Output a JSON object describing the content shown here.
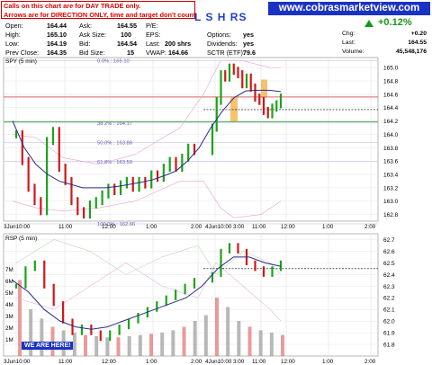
{
  "notice": {
    "line1": "Calls on this chart are for DAY TRADE only.",
    "line2": "Arrows are for DIRECTION ONLY, time and target don't count."
  },
  "quote": {
    "open_label": "Open:",
    "open": "164.44",
    "ask_label": "Ask:",
    "ask": "164.55",
    "pe_label": "P/E:",
    "pe": "",
    "high_label": "High:",
    "high": "165.10",
    "asksize_label": "Ask Size:",
    "asksize": "100",
    "eps_label": "EPS:",
    "eps": "",
    "options_label": "Options:",
    "options": "yes",
    "low_label": "Low:",
    "low": "164.19",
    "bid_label": "Bid:",
    "bid": "164.54",
    "last_label": "Last:",
    "last_size": "200 shrs",
    "dividends_label": "Dividends:",
    "dividends": "yes",
    "prevclose_label": "Prev Close:",
    "prevclose": "164.35",
    "bidsize_label": "Bid Size:",
    "bidsize": "15",
    "vwap_label": "VWAP:",
    "vwap": "164.66",
    "sctr_label": "SCTR (ETF):",
    "sctr": "79.6",
    "chg_label": "Chg:",
    "chg": "+0.20",
    "last2_label": "Last:",
    "last2": "164.55",
    "volume_label": "Volume:",
    "volume": "45,548,176",
    "pct_change": "+0.12%"
  },
  "ticker": "L S H RS",
  "site": "www.cobrasmarketview.com",
  "chart_data": [
    {
      "type": "line",
      "panel_label": "SPY (5 min)",
      "ylim": [
        162.7,
        165.15
      ],
      "yticks": [
        "165.0",
        "164.8",
        "164.6",
        "164.4",
        "164.2",
        "164.0",
        "163.8",
        "163.6",
        "163.4",
        "163.2",
        "163.0",
        "162.8"
      ],
      "xticks": [
        "3Jun10:00",
        "11:00",
        "12:00",
        "1:00",
        "2:00",
        "3:00",
        "4Jun10:00",
        "11:00",
        "12:00",
        "1:00",
        "2:00",
        "3:00"
      ],
      "fib_levels": [
        {
          "label": "0.0% : 165.10",
          "value": 165.1
        },
        {
          "label": "38.2% : 164.17",
          "value": 164.17
        },
        {
          "label": "50.0% : 163.88",
          "value": 163.88
        },
        {
          "label": "61.8% : 163.59",
          "value": 163.59
        },
        {
          "label": "100.0% : 162.66",
          "value": 162.66
        }
      ],
      "hlines": {
        "red": 164.56,
        "green": 164.19,
        "dashed": 164.37
      },
      "price_points": [
        164.0,
        163.6,
        163.2,
        163.0,
        162.85,
        163.9,
        164.05,
        163.5,
        163.3,
        163.0,
        162.85,
        162.8,
        162.95,
        163.0,
        163.1,
        163.2,
        163.15,
        163.25,
        163.3,
        163.2,
        163.3,
        163.25,
        163.4,
        163.35,
        163.5,
        163.6,
        163.5,
        163.65,
        163.8,
        163.75,
        164.1,
        164.5,
        164.9,
        164.85,
        165.0,
        164.95,
        164.9,
        164.75,
        164.85,
        164.7,
        164.55,
        164.5,
        164.35,
        164.3,
        164.4,
        164.45,
        164.55
      ],
      "ma_points": [
        164.2,
        163.8,
        163.55,
        163.4,
        163.3,
        163.25,
        163.2,
        163.2,
        163.2,
        163.22,
        163.25,
        163.28,
        163.32,
        163.38,
        163.45,
        163.6,
        163.8,
        164.1,
        164.35,
        164.55,
        164.65,
        164.66,
        164.66,
        164.64
      ]
    },
    {
      "type": "line",
      "panel_label": "RSP (5 min)",
      "ylim": [
        61.7,
        62.75
      ],
      "yticks": [
        "62.7",
        "62.6",
        "62.5",
        "62.4",
        "62.3",
        "62.2",
        "62.1",
        "62.0",
        "61.9",
        "61.8"
      ],
      "volume_ticks": [
        "7M",
        "6M",
        "5M",
        "4M",
        "3M",
        "2M",
        "1M"
      ],
      "xticks": [
        "3Jun10:00",
        "11:00",
        "12:00",
        "1:00",
        "2:00",
        "3:00",
        "4Jun10:00",
        "11:00",
        "12:00",
        "1:00",
        "2:00",
        "3:00"
      ],
      "dashed_level": 62.45,
      "price_points": [
        62.3,
        62.45,
        62.5,
        62.3,
        62.15,
        62.0,
        61.9,
        61.95,
        61.9,
        61.85,
        61.9,
        61.95,
        62.0,
        62.05,
        62.1,
        62.15,
        62.2,
        62.25,
        62.3,
        62.35,
        62.4,
        62.6,
        62.65,
        62.6,
        62.5,
        62.45,
        62.4,
        62.45,
        62.5
      ],
      "volume_points": [
        6.5,
        4.0,
        3.2,
        2.5,
        2.2,
        2.0,
        1.8,
        1.7,
        1.6,
        1.6,
        1.7,
        1.8,
        1.9,
        2.0,
        2.2,
        2.5,
        3.0,
        3.5,
        5.0,
        4.2,
        3.0,
        2.5,
        2.2,
        2.0,
        1.8
      ]
    }
  ],
  "badge": "WE ARE HERE!"
}
